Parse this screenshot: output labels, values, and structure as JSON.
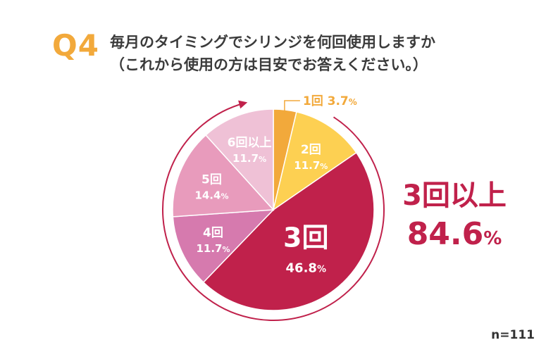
{
  "question": {
    "label": "Q4",
    "line1": "毎月のタイミングでシリンジを何回使用しますか",
    "line2": "（これから使用の方は目安でお答えください。）"
  },
  "summary": {
    "label": "3回以上",
    "value": "84.6",
    "unit": "%"
  },
  "sample": "n=111",
  "colors": {
    "accent": "#f2a93b",
    "summary": "#c0214b",
    "arrow": "#c0214b"
  },
  "chart_data": {
    "type": "pie",
    "title": "毎月のタイミングでシリンジを何回使用しますか",
    "unit": "%",
    "slices": [
      {
        "label": "1回",
        "value": 3.7,
        "color": "#f2a93b"
      },
      {
        "label": "2回",
        "value": 11.7,
        "color": "#fdd052"
      },
      {
        "label": "3回",
        "value": 46.8,
        "color": "#c0214b"
      },
      {
        "label": "4回",
        "value": 11.7,
        "color": "#d67aae"
      },
      {
        "label": "5回",
        "value": 14.4,
        "color": "#e89bbc"
      },
      {
        "label": "6回以上",
        "value": 11.7,
        "color": "#efc1d6"
      }
    ]
  }
}
